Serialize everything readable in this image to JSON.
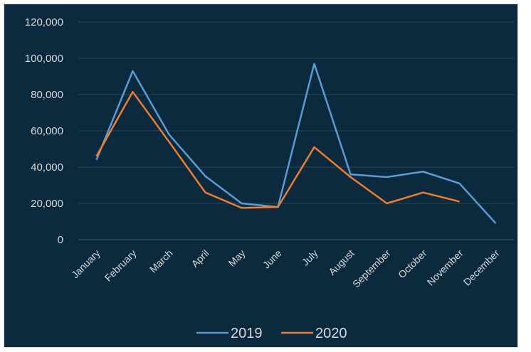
{
  "chart_data": {
    "type": "line",
    "title": "",
    "xlabel": "",
    "ylabel": "",
    "categories": [
      "January",
      "February",
      "March",
      "April",
      "May",
      "June",
      "July",
      "August",
      "September",
      "October",
      "November",
      "December"
    ],
    "y_ticks": [
      "0",
      "20,000",
      "40,000",
      "60,000",
      "80,000",
      "100,000",
      "120,000"
    ],
    "ylim": [
      0,
      120000
    ],
    "grid": true,
    "legend_position": "bottom",
    "series": [
      {
        "name": "2019",
        "color": "#5b9bd5",
        "values": [
          44000,
          93000,
          58000,
          35000,
          20000,
          18000,
          97000,
          36000,
          34500,
          37500,
          31000,
          9000
        ]
      },
      {
        "name": "2020",
        "color": "#ed7d31",
        "values": [
          46000,
          81500,
          54000,
          26000,
          17500,
          18000,
          51000,
          34500,
          20000,
          26000,
          21000,
          null
        ]
      }
    ]
  }
}
